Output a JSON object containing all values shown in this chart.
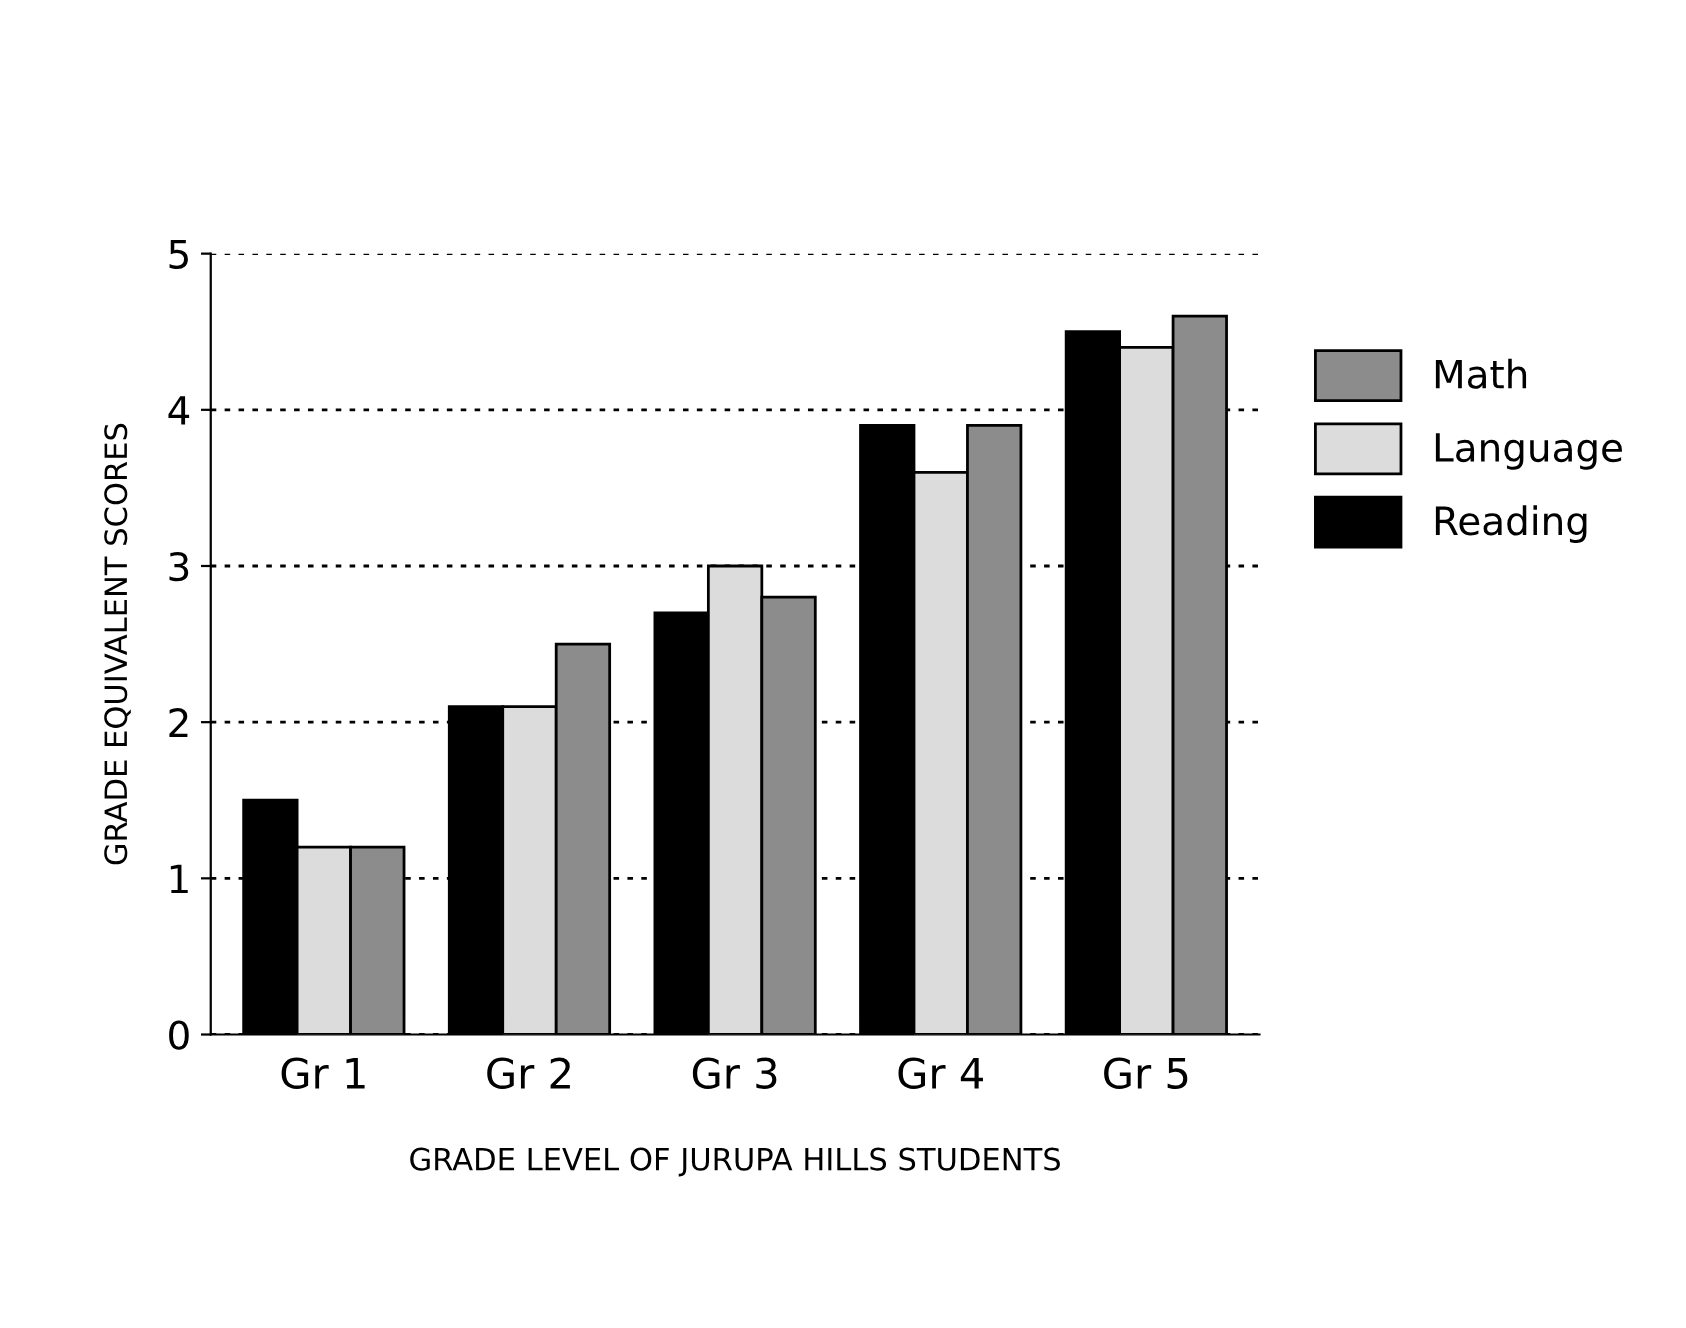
{
  "chart_data": {
    "type": "bar",
    "xlabel": "GRADE LEVEL OF JURUPA HILLS STUDENTS",
    "ylabel": "GRADE EQUIVALENT SCORES",
    "categories": [
      "Gr 1",
      "Gr 2",
      "Gr 3",
      "Gr 4",
      "Gr 5"
    ],
    "series": [
      {
        "name": "Reading",
        "color": "#000000",
        "values": [
          1.5,
          2.1,
          2.7,
          3.9,
          4.5
        ]
      },
      {
        "name": "Language",
        "color": "#dcdcdc",
        "values": [
          1.2,
          2.1,
          3.0,
          3.6,
          4.4
        ]
      },
      {
        "name": "Math",
        "color": "#8c8c8c",
        "values": [
          1.2,
          2.5,
          2.8,
          3.9,
          4.6
        ]
      }
    ],
    "ylim": [
      0,
      5
    ],
    "yticks": [
      0,
      1,
      2,
      3,
      4,
      5
    ],
    "grid": "y",
    "legend": "right"
  }
}
